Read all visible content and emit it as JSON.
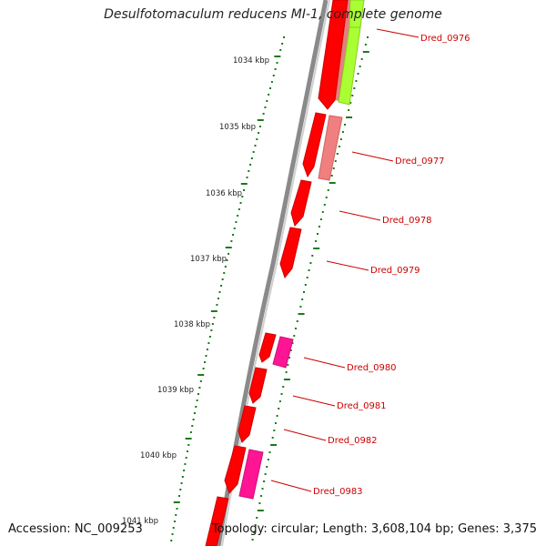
{
  "title": "Desulfotomaculum reducens MI-1, complete genome",
  "footer": {
    "accession": "Accession: NC_009253",
    "summary": "Topology: circular; Length: 3,608,104 bp; Genes: 3,375"
  },
  "colors": {
    "backbone": "#8a8a8a",
    "gene_forward": "#ff0000",
    "gene_label": "#cc0000",
    "tick": "#1a7a1a",
    "lime_feature": "#aaff33",
    "salmon_feature": "#f08080",
    "pink_feature": "#ff1493"
  },
  "kbp_labels": [
    "1034 kbp",
    "1035 kbp",
    "1036 kbp",
    "1037 kbp",
    "1038 kbp",
    "1039 kbp",
    "1040 kbp",
    "1041 kbp"
  ],
  "gene_labels": [
    "Dred_0976",
    "Dred_0977",
    "Dred_0978",
    "Dred_0979",
    "Dred_0980",
    "Dred_0981",
    "Dred_0982",
    "Dred_0983"
  ]
}
